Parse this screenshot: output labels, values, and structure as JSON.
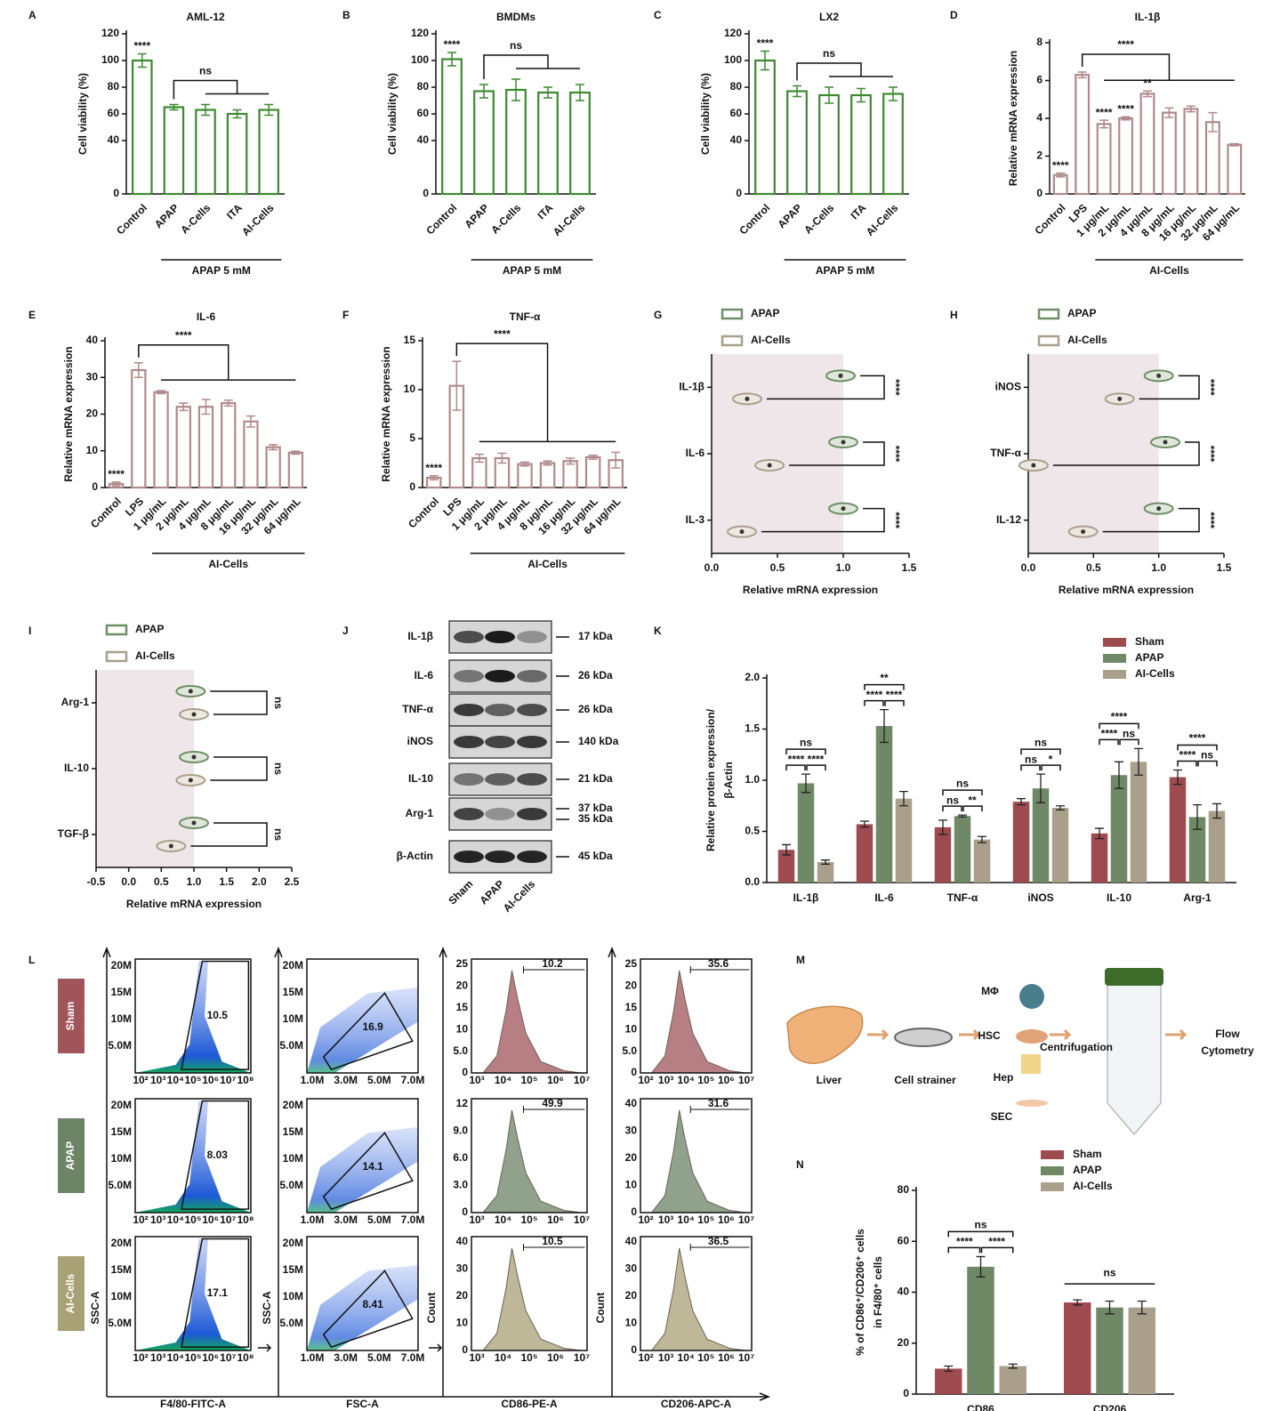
{
  "chart_data": [
    {
      "type": "bar",
      "panel": "A",
      "title": "AML-12",
      "ylabel": "Cell viability (%)",
      "categories": [
        "Control",
        "APAP",
        "A-Cells",
        "ITA",
        "AI-Cells"
      ],
      "values": [
        100,
        65,
        63,
        60,
        63
      ],
      "errors": [
        5,
        2,
        4,
        3,
        4
      ],
      "color": "#3c8a2e",
      "ylim": [
        0,
        120
      ],
      "yticks": [
        0,
        40,
        60,
        80,
        100,
        120
      ],
      "group_label": "APAP 5 mM",
      "annotations": [
        "****",
        "ns"
      ]
    },
    {
      "type": "bar",
      "panel": "B",
      "title": "BMDMs",
      "ylabel": "Cell viability (%)",
      "categories": [
        "Control",
        "APAP",
        "A-Cells",
        "ITA",
        "AI-Cells"
      ],
      "values": [
        101,
        77,
        78,
        76,
        76
      ],
      "errors": [
        5,
        5,
        8,
        4,
        6
      ],
      "color": "#3c8a2e",
      "ylim": [
        0,
        120
      ],
      "yticks": [
        0,
        40,
        60,
        80,
        100,
        120
      ],
      "group_label": "APAP 5 mM",
      "annotations": [
        "****",
        "ns"
      ]
    },
    {
      "type": "bar",
      "panel": "C",
      "title": "LX2",
      "ylabel": "Cell viability (%)",
      "categories": [
        "Control",
        "APAP",
        "A-Cells",
        "ITA",
        "AI-Cells"
      ],
      "values": [
        100,
        77,
        74,
        74,
        75
      ],
      "errors": [
        7,
        4,
        6,
        5,
        5
      ],
      "color": "#3c8a2e",
      "ylim": [
        0,
        120
      ],
      "yticks": [
        0,
        40,
        60,
        80,
        100,
        120
      ],
      "group_label": "APAP 5 mM",
      "annotations": [
        "****",
        "ns"
      ]
    },
    {
      "type": "bar",
      "panel": "D",
      "title": "IL-1β",
      "ylabel": "Relative mRNA expression",
      "categories": [
        "Control",
        "LPS",
        "1 μg/mL",
        "2 μg/mL",
        "4 μg/mL",
        "8 μg/mL",
        "16 μg/mL",
        "32 μg/mL",
        "64 μg/mL"
      ],
      "values": [
        1.0,
        6.3,
        3.7,
        4.0,
        5.3,
        4.3,
        4.5,
        3.8,
        2.6
      ],
      "errors": [
        0.1,
        0.15,
        0.2,
        0.08,
        0.15,
        0.25,
        0.15,
        0.5,
        0.06
      ],
      "color": "#b08a8a",
      "ylim": [
        0,
        8
      ],
      "yticks": [
        0,
        2,
        4,
        6,
        8
      ],
      "group_label": "AI-Cells",
      "annotations": [
        "****",
        "****",
        "****",
        "****",
        "**"
      ]
    },
    {
      "type": "bar",
      "panel": "E",
      "title": "IL-6",
      "ylabel": "Relative mRNA expression",
      "categories": [
        "Control",
        "LPS",
        "1 μg/mL",
        "2 μg/mL",
        "4 μg/mL",
        "8 μg/mL",
        "16 μg/mL",
        "32 μg/mL",
        "64 μg/mL"
      ],
      "values": [
        1,
        32,
        26,
        22,
        22,
        23,
        18,
        11,
        9.5
      ],
      "errors": [
        0.5,
        2,
        0.4,
        1,
        2,
        0.8,
        1.5,
        0.7,
        0.4
      ],
      "color": "#b08a8a",
      "ylim": [
        0,
        40
      ],
      "yticks": [
        0,
        10,
        20,
        30,
        40
      ],
      "group_label": "AI-Cells",
      "annotations": [
        "****",
        "****"
      ]
    },
    {
      "type": "bar",
      "panel": "F",
      "title": "TNF-α",
      "ylabel": "Relative mRNA expression",
      "categories": [
        "Control",
        "LPS",
        "1 μg/mL",
        "2 μg/mL",
        "4 μg/mL",
        "8 μg/mL",
        "16 μg/mL",
        "32 μg/mL",
        "64 μg/mL"
      ],
      "values": [
        1,
        10.4,
        3,
        3,
        2.4,
        2.5,
        2.7,
        3.1,
        2.8
      ],
      "errors": [
        0.2,
        2.5,
        0.4,
        0.5,
        0.2,
        0.2,
        0.3,
        0.2,
        0.8
      ],
      "color": "#b08a8a",
      "ylim": [
        0,
        15
      ],
      "yticks": [
        0,
        5,
        10,
        15
      ],
      "group_label": "AI-Cells",
      "annotations": [
        "****",
        "****"
      ]
    },
    {
      "type": "violin",
      "panel": "G",
      "categories": [
        "IL-1β",
        "IL-6",
        "IL-3"
      ],
      "series": [
        {
          "name": "APAP",
          "color": "#6e8f66",
          "values": [
            0.98,
            1.0,
            1.0
          ]
        },
        {
          "name": "AI-Cells",
          "color": "#a99f8d",
          "values": [
            0.27,
            0.44,
            0.23
          ]
        }
      ],
      "xlabel": "Relative mRNA expression",
      "xlim": [
        0,
        1.5
      ],
      "xticks": [
        {
          "value": 0,
          "label": "0.0"
        },
        0.5,
        {
          "value": 1,
          "label": "1.0"
        },
        1.5
      ],
      "reference_line": 1,
      "legend": "top-left",
      "annotations": [
        "****",
        "****",
        "****"
      ]
    },
    {
      "type": "violin",
      "panel": "H",
      "categories": [
        "iNOS",
        "TNF-α",
        "IL-12"
      ],
      "series": [
        {
          "name": "APAP",
          "color": "#6e8f66",
          "values": [
            1.0,
            1.05,
            1.0
          ]
        },
        {
          "name": "AI-Cells",
          "color": "#a99f8d",
          "values": [
            0.7,
            0.04,
            0.42
          ]
        }
      ],
      "xlabel": "Relative mRNA expression",
      "xlim": [
        0,
        1.5
      ],
      "xticks": [
        {
          "value": 0,
          "label": "0.0"
        },
        0.5,
        {
          "value": 1,
          "label": "1.0"
        },
        1.5
      ],
      "reference_line": 1,
      "legend": "top-left",
      "annotations": [
        "****",
        "****",
        "****"
      ]
    },
    {
      "type": "violin",
      "panel": "I",
      "categories": [
        "Arg-1",
        "IL-10",
        "TGF-β"
      ],
      "series": [
        {
          "name": "APAP",
          "color": "#6e8f66",
          "values": [
            0.95,
            1.0,
            1.0
          ]
        },
        {
          "name": "AI-Cells",
          "color": "#a99f8d",
          "values": [
            1.0,
            0.95,
            0.65
          ]
        }
      ],
      "xlabel": "Relative mRNA expression",
      "xlim": [
        -0.5,
        2.5
      ],
      "xticks": [
        -0.5,
        {
          "value": 0,
          "label": "0.0"
        },
        0.5,
        {
          "value": 1,
          "label": "1.0"
        },
        1.5,
        {
          "value": 2,
          "label": "2.0"
        },
        2.5
      ],
      "reference_line": 1,
      "legend": "top-left",
      "annotations": [
        "ns",
        "ns",
        "ns"
      ]
    },
    {
      "type": "grouped_bar",
      "panel": "K",
      "ylabel": [
        "Relative protein expression/",
        "β-Actin"
      ],
      "categories": [
        "IL-1β",
        "IL-6",
        "TNF-α",
        "iNOS",
        "IL-10",
        "Arg-1"
      ],
      "series": [
        {
          "name": "Sham",
          "color": "#9e4b50",
          "values": [
            0.32,
            0.57,
            0.54,
            0.79,
            0.48,
            1.03
          ],
          "errors": [
            0.05,
            0.03,
            0.07,
            0.03,
            0.05,
            0.07
          ]
        },
        {
          "name": "APAP",
          "color": "#6f8866",
          "values": [
            0.97,
            1.53,
            0.65,
            0.92,
            1.05,
            0.64
          ],
          "errors": [
            0.09,
            0.16,
            0.01,
            0.14,
            0.13,
            0.12
          ]
        },
        {
          "name": "AI-Cells",
          "color": "#aa9f8b",
          "values": [
            0.2,
            0.82,
            0.42,
            0.73,
            1.18,
            0.7
          ],
          "errors": [
            0.02,
            0.07,
            0.03,
            0.02,
            0.13,
            0.07
          ]
        }
      ],
      "ylim": [
        0,
        2
      ],
      "yticks": [
        {
          "value": 0,
          "label": "0.0"
        },
        0.5,
        {
          "value": 1,
          "label": "1.0"
        },
        1.5,
        {
          "value": 2,
          "label": "2.0"
        }
      ],
      "legend": "top-right",
      "annotations": [
        [
          "ns",
          "****",
          "****"
        ],
        [
          "**",
          "****",
          "****"
        ],
        [
          "ns",
          "ns",
          "**"
        ],
        [
          "ns",
          "ns",
          "*"
        ],
        [
          "****",
          "****",
          "ns"
        ],
        [
          "****",
          "****",
          "ns"
        ]
      ]
    },
    {
      "type": "grouped_bar",
      "panel": "N",
      "ylabel": [
        "% of CD86⁺/CD206⁺ cells",
        "in F4/80⁺ cells"
      ],
      "categories": [
        "CD86",
        "CD206"
      ],
      "series": [
        {
          "name": "Sham",
          "color": "#9e4b50",
          "values": [
            10,
            36
          ],
          "errors": [
            1,
            1
          ]
        },
        {
          "name": "APAP",
          "color": "#6f8866",
          "values": [
            50,
            34
          ],
          "errors": [
            4,
            2.5
          ]
        },
        {
          "name": "AI-Cells",
          "color": "#aa9f8b",
          "values": [
            11,
            34
          ],
          "errors": [
            0.8,
            2.5
          ]
        }
      ],
      "ylim": [
        0,
        80
      ],
      "yticks": [
        0,
        20,
        40,
        60,
        80
      ],
      "legend": "top-right",
      "annotations": [
        [
          "ns",
          "****",
          "****"
        ],
        [
          "ns"
        ]
      ]
    }
  ],
  "western_blot": {
    "panel": "J",
    "lanes": [
      "Sham",
      "APAP",
      "AI-Cells"
    ],
    "bands": [
      {
        "label": "IL-1β",
        "kda": [
          "17 kDa"
        ]
      },
      {
        "label": "IL-6",
        "kda": [
          "26 kDa"
        ]
      },
      {
        "label": "TNF-α",
        "kda": [
          "26 kDa"
        ]
      },
      {
        "label": "iNOS",
        "kda": [
          "140 kDa"
        ]
      },
      {
        "label": "IL-10",
        "kda": [
          "21 kDa"
        ]
      },
      {
        "label": "Arg-1",
        "kda": [
          "37 kDa",
          "35 kDa"
        ]
      },
      {
        "label": "β-Actin",
        "kda": [
          "45 kDa"
        ]
      }
    ]
  },
  "flow": {
    "panel": "L",
    "rows": [
      "Sham",
      "APAP",
      "AI-Cells"
    ],
    "row_colors": [
      "#a0555a",
      "#6d8466",
      "#a9a176"
    ],
    "columns": [
      {
        "kind": "scatter",
        "xlabel": "F4/80-FITC-A",
        "ylabel": "SSC-A",
        "xticks": [
          "10²",
          "10³",
          "10⁴",
          "10⁵",
          "10⁶",
          "10⁷",
          "10⁸"
        ],
        "yticks": [
          "20M",
          "15M",
          "10M",
          "5.0M"
        ],
        "gates": [
          "10.5",
          "8.03",
          "17.1"
        ]
      },
      {
        "kind": "scatter",
        "xlabel": "FSC-A",
        "ylabel": "SSC-A",
        "xticks": [
          "1.0M",
          "3.0M",
          "5.0M",
          "7.0M"
        ],
        "yticks": [
          "20M",
          "15M",
          "10M",
          "5.0M"
        ],
        "gates": [
          "16.9",
          "14.1",
          "8.41"
        ]
      },
      {
        "kind": "hist",
        "xlabel": "CD86-PE-A",
        "ylabel": "Count",
        "xticks": [
          "10³",
          "10⁴",
          "10⁵",
          "10⁶",
          "10⁷"
        ],
        "yticks": [
          [
            "25",
            "20",
            "15",
            "10",
            "5.0",
            "0"
          ],
          [
            "12",
            "9.0",
            "6.0",
            "3.0",
            "0"
          ],
          [
            "40",
            "30",
            "20",
            "10",
            "0"
          ]
        ],
        "gates": [
          "10.2",
          "49.9",
          "10.5"
        ]
      },
      {
        "kind": "hist",
        "xlabel": "CD206-APC-A",
        "ylabel": "Count",
        "xticks": [
          "10²",
          "10³",
          "10⁴",
          "10⁵",
          "10⁶",
          "10⁷"
        ],
        "yticks": [
          [
            "25",
            "20",
            "15",
            "10",
            "5.0",
            "0"
          ],
          [
            "40",
            "30",
            "20",
            "10",
            "0"
          ],
          [
            "40",
            "30",
            "20",
            "10",
            "0"
          ]
        ],
        "gates": [
          "35.6",
          "31.6",
          "36.5"
        ]
      }
    ]
  },
  "diagram": {
    "panel": "M",
    "nodes": [
      "Liver",
      "Cell strainer",
      "MΦ",
      "HSC",
      "Hep",
      "SEC"
    ],
    "step": "Centrifugation",
    "output": [
      "Flow",
      "Cytometry"
    ]
  }
}
